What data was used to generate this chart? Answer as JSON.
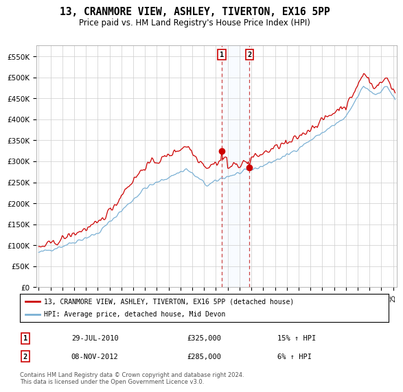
{
  "title": "13, CRANMORE VIEW, ASHLEY, TIVERTON, EX16 5PP",
  "subtitle": "Price paid vs. HM Land Registry's House Price Index (HPI)",
  "title_fontsize": 10.5,
  "subtitle_fontsize": 8.5,
  "legend_label_red": "13, CRANMORE VIEW, ASHLEY, TIVERTON, EX16 5PP (detached house)",
  "legend_label_blue": "HPI: Average price, detached house, Mid Devon",
  "sale1_date": "29-JUL-2010",
  "sale1_price": 325000,
  "sale1_hpi": "15% ↑ HPI",
  "sale2_date": "08-NOV-2012",
  "sale2_price": 285000,
  "sale2_hpi": "6% ↑ HPI",
  "footer": "Contains HM Land Registry data © Crown copyright and database right 2024.\nThis data is licensed under the Open Government Licence v3.0.",
  "background_color": "#ffffff",
  "plot_background": "#ffffff",
  "grid_color": "#cccccc",
  "red_color": "#cc0000",
  "blue_color": "#7ab0d4",
  "sale_marker_color": "#cc0000",
  "vline_color": "#cc4444",
  "span_color": "#ddeeff",
  "ylim_min": 0,
  "ylim_max": 577000,
  "yticks": [
    0,
    50000,
    100000,
    150000,
    200000,
    250000,
    300000,
    350000,
    400000,
    450000,
    500000,
    550000
  ],
  "ytick_labels": [
    "£0",
    "£50K",
    "£100K",
    "£150K",
    "£200K",
    "£250K",
    "£300K",
    "£350K",
    "£400K",
    "£450K",
    "£500K",
    "£550K"
  ],
  "sale1_t": 2010.5,
  "sale2_t": 2012.833,
  "xmin": 1994.8,
  "xmax": 2025.3
}
